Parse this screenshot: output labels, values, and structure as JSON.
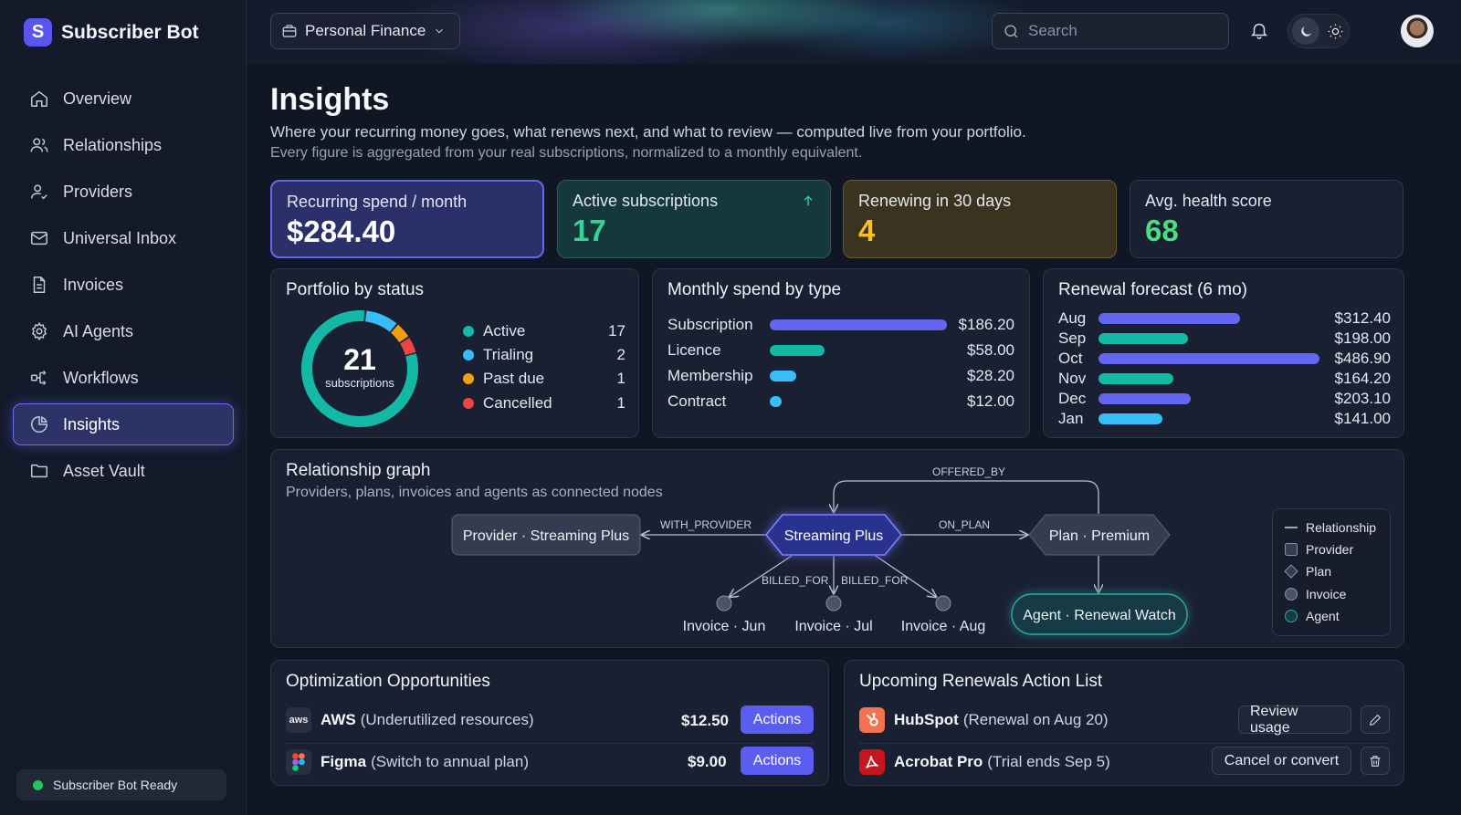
{
  "app": {
    "name": "Subscriber Bot",
    "logo_letter": "S"
  },
  "sidebar": {
    "items": [
      {
        "label": "Overview",
        "icon": "home-icon"
      },
      {
        "label": "Relationships",
        "icon": "users-icon"
      },
      {
        "label": "Providers",
        "icon": "provider-icon"
      },
      {
        "label": "Universal Inbox",
        "icon": "mail-icon"
      },
      {
        "label": "Invoices",
        "icon": "document-icon"
      },
      {
        "label": "AI Agents",
        "icon": "gear-icon"
      },
      {
        "label": "Workflows",
        "icon": "workflow-icon"
      },
      {
        "label": "Insights",
        "icon": "pie-chart-icon",
        "active": true
      },
      {
        "label": "Asset Vault",
        "icon": "folder-icon"
      }
    ],
    "status": "Subscriber Bot Ready"
  },
  "topbar": {
    "workspace": "Personal Finance",
    "search_placeholder": "Search"
  },
  "page": {
    "title": "Insights",
    "subtitle": "Where your recurring money goes, what renews next, and what to review — computed live from your portfolio.",
    "subtitle2": "Every figure is aggregated from your real subscriptions, normalized to a monthly equivalent."
  },
  "kpis": [
    {
      "label": "Recurring spend / month",
      "value": "$284.40"
    },
    {
      "label": "Active subscriptions",
      "value": "17"
    },
    {
      "label": "Renewing in 30 days",
      "value": "4"
    },
    {
      "label": "Avg. health score",
      "value": "68"
    }
  ],
  "portfolio": {
    "title": "Portfolio by status",
    "total": "21",
    "total_caption": "subscriptions",
    "items": [
      {
        "label": "Active",
        "count": 17,
        "color": "#14b8a6"
      },
      {
        "label": "Trialing",
        "count": 2,
        "color": "#38bdf8"
      },
      {
        "label": "Past due",
        "count": 1,
        "color": "#f59e0b"
      },
      {
        "label": "Cancelled",
        "count": 1,
        "color": "#ef4444"
      }
    ]
  },
  "spend_by_type": {
    "title": "Monthly spend by type",
    "rows": [
      {
        "label": "Subscription",
        "value": 186.2,
        "display": "$186.20",
        "color": "#6366f1"
      },
      {
        "label": "Licence",
        "value": 58.0,
        "display": "$58.00",
        "color": "#14b8a6"
      },
      {
        "label": "Membership",
        "value": 28.2,
        "display": "$28.20",
        "color": "#38bdf8"
      },
      {
        "label": "Contract",
        "value": 12.0,
        "display": "$12.00",
        "color": "#38bdf8"
      }
    ]
  },
  "renewal_forecast": {
    "title": "Renewal forecast (6 mo)",
    "rows": [
      {
        "label": "Aug",
        "value": 312.4,
        "display": "$312.40",
        "color": "#6366f1"
      },
      {
        "label": "Sep",
        "value": 198.0,
        "display": "$198.00",
        "color": "#14b8a6"
      },
      {
        "label": "Oct",
        "value": 486.9,
        "display": "$486.90",
        "color": "#6366f1"
      },
      {
        "label": "Nov",
        "value": 164.2,
        "display": "$164.20",
        "color": "#14b8a6"
      },
      {
        "label": "Dec",
        "value": 203.1,
        "display": "$203.10",
        "color": "#6366f1"
      },
      {
        "label": "Jan",
        "value": 141.0,
        "display": "$141.00",
        "color": "#38bdf8"
      }
    ]
  },
  "graph": {
    "title": "Relationship graph",
    "subtitle": "Providers, plans, invoices and agents as connected nodes",
    "nodes": {
      "provider": "Provider · Streaming Plus",
      "center": "Streaming Plus",
      "plan": "Plan · Premium",
      "agent": "Agent · Renewal Watch",
      "invoice1": "Invoice · Jun",
      "invoice2": "Invoice · Jul",
      "invoice3": "Invoice · Aug"
    },
    "edges": {
      "with_provider": "WITH_PROVIDER",
      "on_plan": "ON_PLAN",
      "offered_by": "OFFERED_BY",
      "billed_for_1": "BILLED_FOR",
      "billed_for_2": "BILLED_FOR"
    },
    "legend": [
      "Relationship",
      "Provider",
      "Plan",
      "Invoice",
      "Agent"
    ]
  },
  "optimization": {
    "title": "Optimization Opportunities",
    "rows": [
      {
        "name": "AWS",
        "detail": "(Underutilized resources)",
        "amount": "$12.50",
        "action": "Actions",
        "logo": "aws"
      },
      {
        "name": "Figma",
        "detail": "(Switch to annual plan)",
        "amount": "$9.00",
        "action": "Actions",
        "logo": "figma-icon"
      }
    ]
  },
  "renewals": {
    "title": "Upcoming Renewals Action List",
    "rows": [
      {
        "name": "HubSpot",
        "detail": "(Renewal on Aug 20)",
        "action": "Review usage",
        "icon": "edit-icon"
      },
      {
        "name": "Acrobat Pro",
        "detail": "(Trial ends Sep 5)",
        "action": "Cancel or convert",
        "icon": "trash-icon"
      }
    ]
  }
}
